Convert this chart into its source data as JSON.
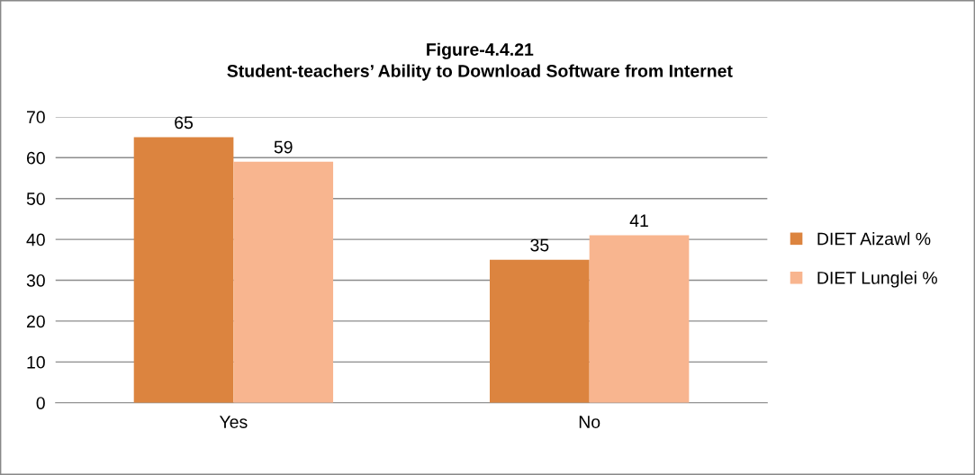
{
  "chart_data": {
    "type": "bar",
    "title": "Figure-4.4.21\nStudent-teachers’ Ability to Download Software from Internet",
    "categories": [
      "Yes",
      "No"
    ],
    "series": [
      {
        "name": "DIET Aizawl %",
        "color": "#dc843f",
        "values": [
          65,
          35
        ]
      },
      {
        "name": "DIET Lunglei %",
        "color": "#f8b58f",
        "values": [
          59,
          41
        ]
      }
    ],
    "ylim": [
      0,
      70
    ],
    "yticks": [
      0,
      10,
      20,
      30,
      40,
      50,
      60,
      70
    ],
    "grid": "y",
    "legend": "right",
    "data_labels": true
  }
}
